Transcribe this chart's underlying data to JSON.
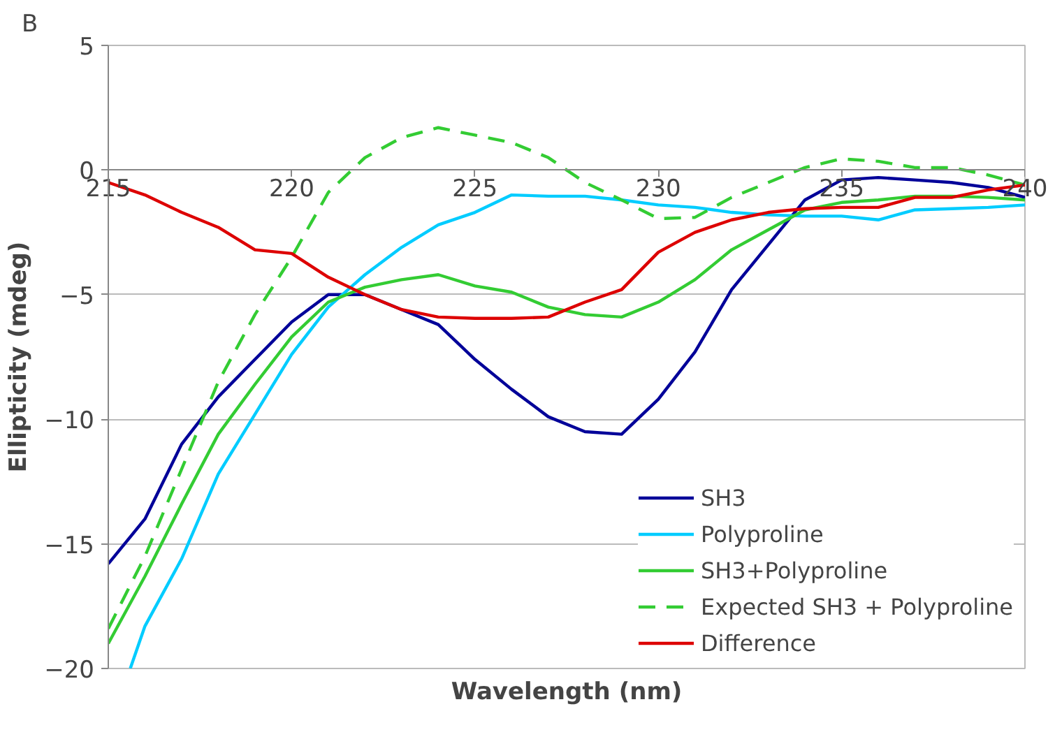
{
  "chart_data": {
    "type": "line",
    "title": "B",
    "xlabel": "Wavelength (nm)",
    "ylabel": "Ellipticity (mdeg)",
    "x": [
      215,
      216,
      217,
      218,
      219,
      220,
      221,
      222,
      223,
      224,
      225,
      226,
      227,
      228,
      229,
      230,
      231,
      232,
      233,
      234,
      235,
      236,
      237,
      238,
      239,
      240
    ],
    "xlim": [
      215,
      240
    ],
    "xticks": [
      215,
      220,
      225,
      230,
      235,
      240
    ],
    "ylim": [
      -20,
      5
    ],
    "yticks": [
      -20,
      -15,
      -10,
      -5,
      0,
      5
    ],
    "grid": "y",
    "legend": "bottom right",
    "series": [
      {
        "name": "SH3",
        "color": "#000099",
        "values": [
          -15.8,
          -14,
          -11,
          -9.1,
          -7.6,
          -6.1,
          -5.0,
          -5.0,
          -5.6,
          -6.2,
          -7.6,
          -8.8,
          -9.9,
          -10.5,
          -10.6,
          -9.2,
          -7.3,
          -4.8,
          -3.0,
          -1.2,
          -0.4,
          -0.3,
          -0.4,
          -0.5,
          -0.7,
          -1.1
        ]
      },
      {
        "name": "Polyproline",
        "color": "#00ccff",
        "x": [
          215.6,
          216,
          217,
          218,
          219,
          220,
          221,
          222,
          223,
          224,
          225,
          226,
          227,
          228,
          229,
          230,
          231,
          232,
          233,
          234,
          235,
          236,
          237,
          238,
          239,
          240
        ],
        "values": [
          -20,
          -18.3,
          -15.6,
          -12.2,
          -9.8,
          -7.4,
          -5.5,
          -4.2,
          -3.1,
          -2.2,
          -1.7,
          -1.0,
          -1.05,
          -1.05,
          -1.2,
          -1.4,
          -1.5,
          -1.7,
          -1.8,
          -1.85,
          -1.85,
          -2.0,
          -1.6,
          -1.55,
          -1.5,
          -1.4
        ]
      },
      {
        "name": "SH3+Polyproline",
        "color": "#33cc33",
        "values": [
          -19,
          -16.3,
          -13.4,
          -10.6,
          -8.6,
          -6.7,
          -5.3,
          -4.7,
          -4.4,
          -4.2,
          -4.65,
          -4.9,
          -5.5,
          -5.8,
          -5.9,
          -5.3,
          -4.4,
          -3.2,
          -2.4,
          -1.6,
          -1.3,
          -1.2,
          -1.05,
          -1.05,
          -1.1,
          -1.2
        ]
      },
      {
        "name": "Expected SH3 + Polyproline",
        "color": "#33cc33",
        "line_style": "dashed",
        "values": [
          -18.4,
          -15.5,
          -12,
          -8.5,
          -5.8,
          -3.5,
          -0.9,
          0.5,
          1.3,
          1.7,
          1.4,
          1.1,
          0.5,
          -0.5,
          -1.2,
          -1.95,
          -1.9,
          -1.1,
          -0.5,
          0.1,
          0.45,
          0.35,
          0.1,
          0.1,
          -0.2,
          -0.6
        ]
      },
      {
        "name": "Difference",
        "color": "#dd0000",
        "values": [
          -0.5,
          -1.0,
          -1.7,
          -2.3,
          -3.2,
          -3.35,
          -4.3,
          -5.0,
          -5.6,
          -5.9,
          -5.95,
          -5.95,
          -5.9,
          -5.3,
          -4.8,
          -3.3,
          -2.5,
          -2.0,
          -1.7,
          -1.55,
          -1.5,
          -1.5,
          -1.1,
          -1.1,
          -0.8,
          -0.6
        ]
      }
    ]
  }
}
